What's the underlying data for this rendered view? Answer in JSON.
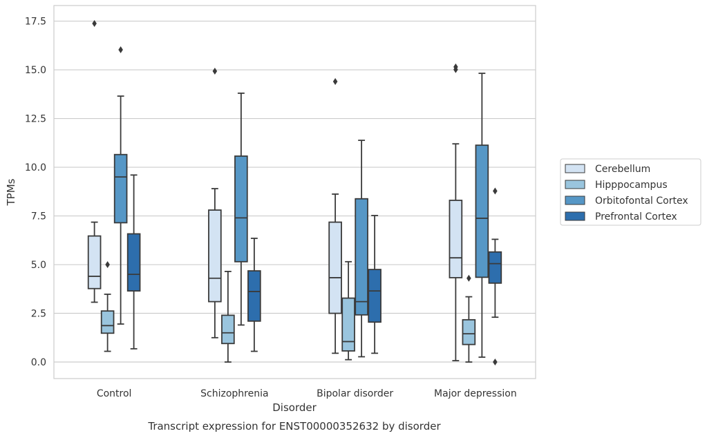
{
  "chart_data": {
    "type": "box",
    "title": "Transcript expression for ENST00000352632 by disorder",
    "xlabel": "Disorder",
    "ylabel": "TPMs",
    "ylim": [
      -0.85,
      18.3
    ],
    "yticks": [
      "0.0",
      "2.5",
      "5.0",
      "7.5",
      "10.0",
      "12.5",
      "15.0",
      "17.5"
    ],
    "ytick_values": [
      0,
      2.5,
      5,
      7.5,
      10,
      12.5,
      15,
      17.5
    ],
    "grid": "horizontal",
    "legend_position": "right",
    "categories": [
      "Control",
      "Schizophrenia",
      "Bipolar disorder",
      "Major depression"
    ],
    "series": [
      {
        "name": "Cerebellum",
        "color": "#d3e3f3",
        "boxes": [
          {
            "whislo": 3.07,
            "q1": 3.77,
            "med": 4.4,
            "q3": 6.47,
            "whishi": 7.18,
            "fliers": [
              17.38
            ]
          },
          {
            "whislo": 1.25,
            "q1": 3.1,
            "med": 4.3,
            "q3": 7.8,
            "whishi": 8.9,
            "fliers": [
              14.93
            ]
          },
          {
            "whislo": 0.45,
            "q1": 2.5,
            "med": 4.33,
            "q3": 7.18,
            "whishi": 8.62,
            "fliers": [
              14.4
            ]
          },
          {
            "whislo": 0.07,
            "q1": 4.33,
            "med": 5.35,
            "q3": 8.3,
            "whishi": 11.2,
            "fliers": [
              15.01,
              15.15
            ]
          }
        ]
      },
      {
        "name": "Hipppocampus",
        "color": "#9ac5de",
        "boxes": [
          {
            "whislo": 0.55,
            "q1": 1.48,
            "med": 1.87,
            "q3": 2.62,
            "whishi": 3.48,
            "fliers": [
              5.0
            ]
          },
          {
            "whislo": 0.0,
            "q1": 0.95,
            "med": 1.5,
            "q3": 2.4,
            "whishi": 4.65,
            "fliers": []
          },
          {
            "whislo": 0.12,
            "q1": 0.57,
            "med": 1.05,
            "q3": 3.28,
            "whishi": 5.15,
            "fliers": []
          },
          {
            "whislo": 0.0,
            "q1": 0.9,
            "med": 1.45,
            "q3": 2.17,
            "whishi": 3.35,
            "fliers": [
              4.3
            ]
          }
        ]
      },
      {
        "name": "Orbitofontal Cortex",
        "color": "#5697c6",
        "boxes": [
          {
            "whislo": 1.95,
            "q1": 7.15,
            "med": 9.5,
            "q3": 10.65,
            "whishi": 13.65,
            "fliers": [
              16.03
            ]
          },
          {
            "whislo": 1.9,
            "q1": 5.15,
            "med": 7.4,
            "q3": 10.57,
            "whishi": 13.8,
            "fliers": []
          },
          {
            "whislo": 0.27,
            "q1": 2.42,
            "med": 3.1,
            "q3": 8.38,
            "whishi": 11.38,
            "fliers": []
          },
          {
            "whislo": 0.25,
            "q1": 4.35,
            "med": 7.38,
            "q3": 11.13,
            "whishi": 14.82,
            "fliers": []
          }
        ]
      },
      {
        "name": "Prefrontal Cortex",
        "color": "#2d6ead",
        "boxes": [
          {
            "whislo": 0.68,
            "q1": 3.65,
            "med": 4.5,
            "q3": 6.58,
            "whishi": 9.6,
            "fliers": []
          },
          {
            "whislo": 0.55,
            "q1": 2.1,
            "med": 3.62,
            "q3": 4.68,
            "whishi": 6.35,
            "fliers": []
          },
          {
            "whislo": 0.45,
            "q1": 2.05,
            "med": 3.65,
            "q3": 4.75,
            "whishi": 7.52,
            "fliers": []
          },
          {
            "whislo": 2.3,
            "q1": 4.05,
            "med": 5.05,
            "q3": 5.65,
            "whishi": 6.3,
            "fliers": [
              8.78,
              0.0
            ]
          }
        ]
      }
    ]
  }
}
